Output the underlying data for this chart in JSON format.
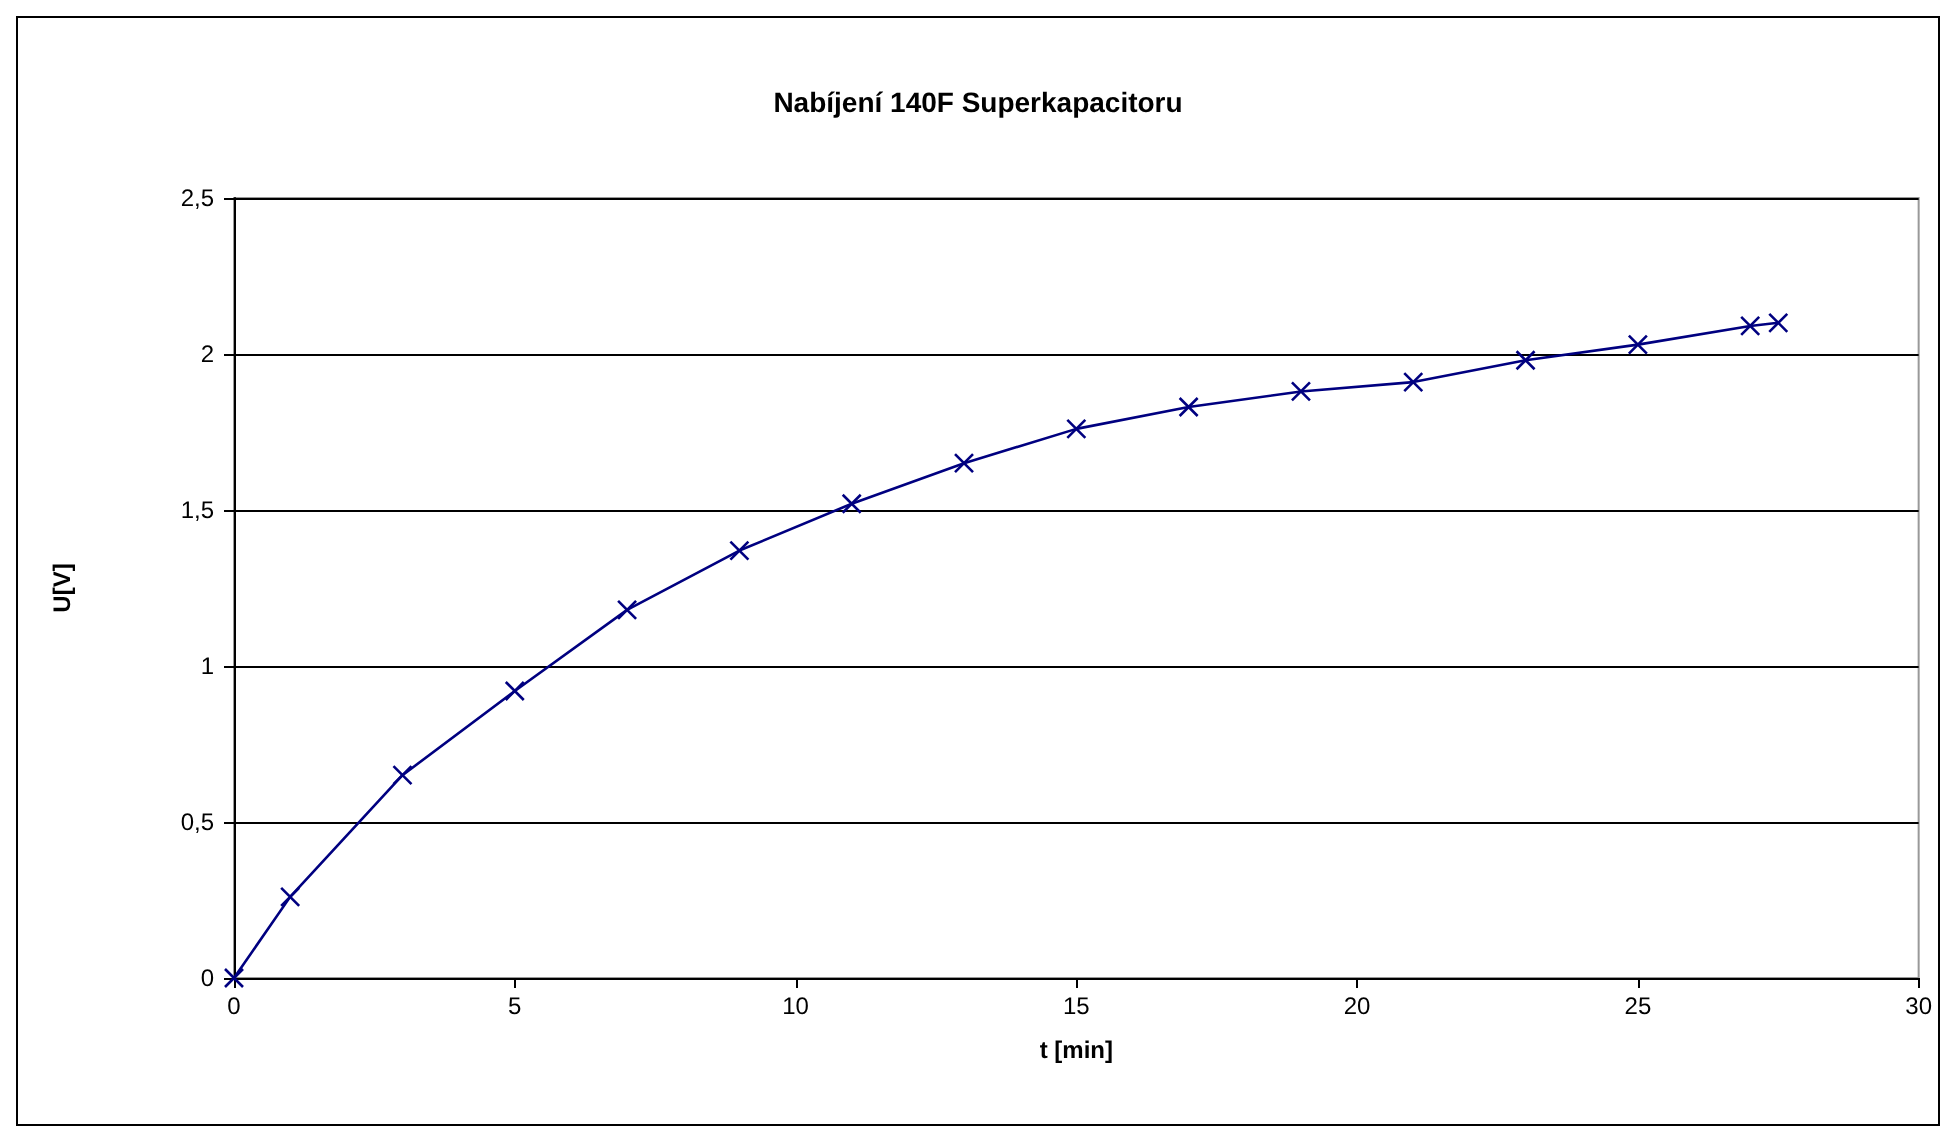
{
  "chart_data": {
    "type": "line",
    "title": "Nabíjení 140F Superkapacitoru",
    "xlabel": "t [min]",
    "ylabel": "U[V]",
    "x": [
      0,
      1,
      3,
      5,
      7,
      9,
      11,
      13,
      15,
      17,
      19,
      21,
      23,
      25,
      27,
      27.5
    ],
    "series": [
      {
        "color": "#000080",
        "values": [
          0,
          0.26,
          0.65,
          0.92,
          1.18,
          1.37,
          1.52,
          1.65,
          1.76,
          1.83,
          1.88,
          1.91,
          1.98,
          2.03,
          2.09,
          2.1
        ]
      }
    ],
    "xlim": [
      0,
      30
    ],
    "xticks": [
      0,
      5,
      10,
      15,
      20,
      25,
      30
    ],
    "ylim": [
      0,
      2.5
    ],
    "yticks": [
      0,
      {
        "value": 0.5,
        "label": "0,5"
      },
      1,
      {
        "value": 1.5,
        "label": "1,5"
      },
      2,
      {
        "value": 2.5,
        "label": "2,5"
      }
    ],
    "grid": "y",
    "marker": "cross",
    "line_style": "solid"
  }
}
